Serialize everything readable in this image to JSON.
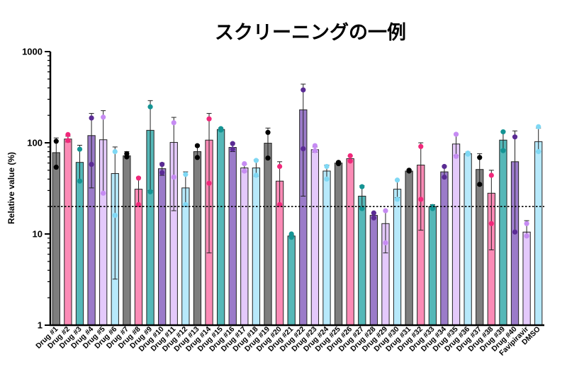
{
  "chart_data": {
    "type": "bar",
    "title": "スクリーニングの一例",
    "xlabel": "",
    "ylabel": "Relative value (%)",
    "yscale": "log",
    "ylim": [
      1,
      1000
    ],
    "yticks": [
      "1",
      "10",
      "100",
      "1000"
    ],
    "threshold": 20,
    "categories": [
      "Drug #1",
      "Drug #2",
      "Drug #3",
      "Drug #4",
      "Drug #5",
      "Drug #6",
      "Drug #7",
      "Drug #8",
      "Drug #9",
      "Drug #10",
      "Drug #11",
      "Drug #12",
      "Drug #13",
      "Drug #14",
      "Drug #15",
      "Drug #16",
      "Drug #17",
      "Drug #18",
      "Drug #19",
      "Drug #20",
      "Drug #21",
      "Drug #22",
      "Drug #23",
      "Drug #24",
      "Drug #25",
      "Drug #26",
      "Drug #27",
      "Drug #28",
      "Drug #29",
      "Drug #30",
      "Drug #31",
      "Drug #32",
      "Drug #33",
      "Drug #34",
      "Drug #35",
      "Drug #36",
      "Drug #37",
      "Drug #38",
      "Drug #39",
      "Drug #40",
      "Favipiravir",
      "DMSO"
    ],
    "values": [
      78,
      110,
      61,
      120,
      108,
      46,
      72,
      31,
      137,
      52,
      101,
      32,
      80,
      107,
      140,
      89,
      53,
      53,
      99,
      38,
      9.5,
      230,
      84,
      49,
      60,
      67,
      26,
      16,
      13,
      31,
      49,
      57,
      20,
      48,
      97,
      76,
      51,
      28,
      107,
      62,
      10.5,
      103
    ],
    "error_low": [
      55,
      102,
      38,
      32,
      28,
      3.2,
      70,
      20,
      30,
      44,
      18,
      20,
      68,
      6.2,
      136,
      80,
      48,
      43,
      68,
      21,
      9.3,
      26,
      79,
      40,
      58,
      64,
      19,
      15,
      6.2,
      25,
      48,
      11,
      19,
      42,
      73,
      74,
      34,
      6.7,
      84,
      10.5,
      9.5,
      80
    ],
    "error_high": [
      113,
      118,
      94,
      210,
      225,
      90,
      80,
      42,
      290,
      60,
      190,
      48,
      95,
      210,
      146,
      100,
      58,
      65,
      145,
      62,
      9.7,
      440,
      90,
      57,
      62,
      72,
      34,
      17,
      18,
      39,
      51,
      100,
      21,
      56,
      124,
      79,
      76,
      50,
      134,
      135,
      14,
      145
    ],
    "points": [
      [
        104,
        54
      ],
      [
        123,
        106
      ],
      [
        85,
        38
      ],
      [
        187,
        58
      ],
      [
        191,
        28
      ],
      [
        80,
        16
      ],
      [
        76,
        70
      ],
      [
        41,
        21
      ],
      [
        248,
        29
      ],
      [
        58,
        47
      ],
      [
        166,
        42
      ],
      [
        45,
        21
      ],
      [
        93,
        69
      ],
      [
        183,
        36
      ],
      [
        143,
        138
      ],
      [
        98,
        85
      ],
      [
        59,
        49
      ],
      [
        64,
        44
      ],
      [
        130,
        68
      ],
      [
        55,
        21
      ],
      [
        10,
        9.2
      ],
      [
        380,
        86
      ],
      [
        93,
        82
      ],
      [
        55,
        40
      ],
      [
        61,
        59
      ],
      [
        72,
        63
      ],
      [
        33,
        19
      ],
      [
        17,
        15
      ],
      [
        18,
        8
      ],
      [
        39,
        24
      ],
      [
        50,
        49
      ],
      [
        91,
        24
      ],
      [
        20,
        19
      ],
      [
        55,
        42
      ],
      [
        124,
        71
      ],
      [
        77,
        75
      ],
      [
        69,
        35
      ],
      [
        44,
        13
      ],
      [
        132,
        82
      ],
      [
        116,
        10.5
      ],
      [
        13,
        9.5
      ],
      [
        150,
        80
      ]
    ],
    "bar_colors": [
      "#7e7e7e",
      "#fb8bb6",
      "#55b8b8",
      "#9b7bc9",
      "#e4c9fb",
      "#b7e9fb",
      "#7e7e7e",
      "#fb8bb6",
      "#55b8b8",
      "#9b7bc9",
      "#e4c9fb",
      "#b7e9fb",
      "#7e7e7e",
      "#fb8bb6",
      "#55b8b8",
      "#9b7bc9",
      "#e4c9fb",
      "#b7e9fb",
      "#7e7e7e",
      "#fb8bb6",
      "#55b8b8",
      "#9b7bc9",
      "#e4c9fb",
      "#b7e9fb",
      "#7e7e7e",
      "#fb8bb6",
      "#55b8b8",
      "#9b7bc9",
      "#e4c9fb",
      "#b7e9fb",
      "#7e7e7e",
      "#fb8bb6",
      "#55b8b8",
      "#9b7bc9",
      "#e4c9fb",
      "#b7e9fb",
      "#7e7e7e",
      "#fb8bb6",
      "#55b8b8",
      "#9b7bc9",
      "#e4c9fb",
      "#b7e9fb"
    ],
    "dot_colors": [
      "#000000",
      "#f0287a",
      "#149494",
      "#5a2b94",
      "#c68bf3",
      "#7fd8f4",
      "#000000",
      "#f0287a",
      "#149494",
      "#5a2b94",
      "#c68bf3",
      "#7fd8f4",
      "#000000",
      "#f0287a",
      "#149494",
      "#5a2b94",
      "#c68bf3",
      "#7fd8f4",
      "#000000",
      "#f0287a",
      "#149494",
      "#5a2b94",
      "#c68bf3",
      "#7fd8f4",
      "#000000",
      "#f0287a",
      "#149494",
      "#5a2b94",
      "#c68bf3",
      "#7fd8f4",
      "#000000",
      "#f0287a",
      "#149494",
      "#5a2b94",
      "#c68bf3",
      "#7fd8f4",
      "#000000",
      "#f0287a",
      "#149494",
      "#5a2b94",
      "#c68bf3",
      "#7fd8f4"
    ]
  }
}
